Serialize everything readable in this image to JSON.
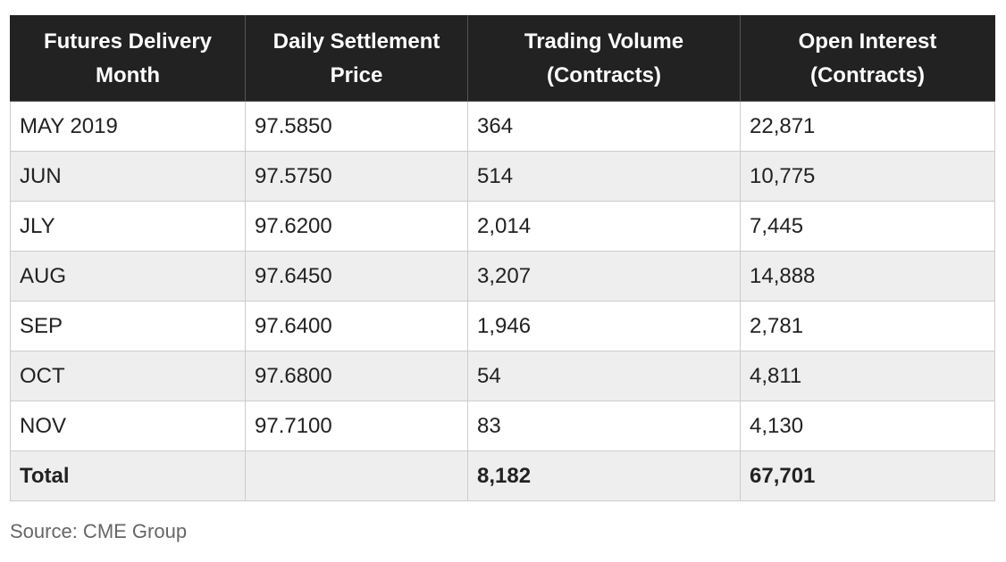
{
  "table": {
    "headers": [
      {
        "line1": "Futures Delivery",
        "line2": "Month"
      },
      {
        "line1": "Daily Settlement",
        "line2": "Price"
      },
      {
        "line1": "Trading Volume",
        "line2": "(Contracts)"
      },
      {
        "line1": "Open Interest",
        "line2": "(Contracts)"
      }
    ],
    "rows": [
      {
        "month": "MAY 2019",
        "price": "97.5850",
        "volume": "364",
        "open_interest": "22,871"
      },
      {
        "month": "JUN",
        "price": "97.5750",
        "volume": "514",
        "open_interest": "10,775"
      },
      {
        "month": "JLY",
        "price": "97.6200",
        "volume": "2,014",
        "open_interest": "7,445"
      },
      {
        "month": "AUG",
        "price": "97.6450",
        "volume": "3,207",
        "open_interest": "14,888"
      },
      {
        "month": "SEP",
        "price": "97.6400",
        "volume": "1,946",
        "open_interest": "2,781"
      },
      {
        "month": "OCT",
        "price": "97.6800",
        "volume": "54",
        "open_interest": "4,811"
      },
      {
        "month": "NOV",
        "price": "97.7100",
        "volume": "83",
        "open_interest": "4,130"
      }
    ],
    "total": {
      "label": "Total",
      "price": "",
      "volume": "8,182",
      "open_interest": "67,701"
    }
  },
  "source": "Source: CME Group",
  "colors": {
    "header_bg": "#222222",
    "header_text": "#ffffff",
    "stripe": "#eeeeee",
    "border": "#cccccc",
    "source_text": "#666666"
  }
}
